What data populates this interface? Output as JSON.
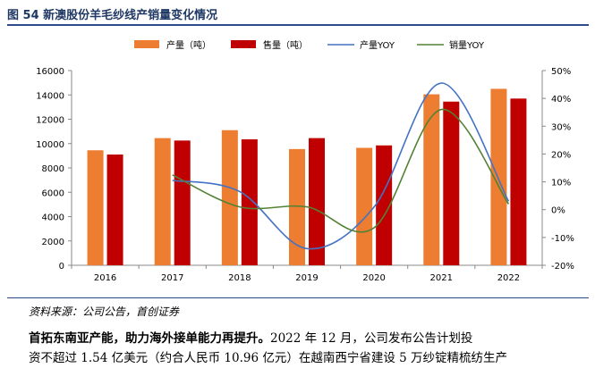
{
  "figure": {
    "title": "图 54 新澳股份羊毛纱线产销量变化情况",
    "source": "资料来源：公司公告，首创证券"
  },
  "body": {
    "lead": "首拓东南亚产能，助力海外接单能力再提升。",
    "text_line1": "2022 年 12 月，公司发布公告计划投",
    "text_line2": "资不超过 1.54 亿美元（约合人民币 10.96 亿元）在越南西宁省建设 5 万纱锭精梳纺生产"
  },
  "colors": {
    "production": "#ED7D31",
    "sales": "#C00000",
    "production_yoy": "#4472C4",
    "sales_yoy": "#548235",
    "title": "#1F3864"
  },
  "chart_data": {
    "type": "bar",
    "categories": [
      "2016",
      "2017",
      "2018",
      "2019",
      "2020",
      "2021",
      "2022"
    ],
    "series": [
      {
        "name": "产量（吨）",
        "type": "bar",
        "axis": "left",
        "values": [
          9450,
          10450,
          11100,
          9550,
          9650,
          14050,
          14500
        ]
      },
      {
        "name": "售量（吨）",
        "type": "bar",
        "axis": "left",
        "values": [
          9100,
          10250,
          10350,
          10450,
          9850,
          13450,
          13700
        ]
      },
      {
        "name": "产量YOY",
        "type": "line",
        "axis": "right",
        "values": [
          null,
          10.5,
          6.5,
          -14.0,
          1.0,
          45.5,
          3.0
        ]
      },
      {
        "name": "销量YOY",
        "type": "line",
        "axis": "right",
        "values": [
          null,
          12.5,
          1.0,
          1.0,
          -6.5,
          36.0,
          2.0
        ]
      }
    ],
    "y_left": {
      "min": 0,
      "max": 16000,
      "step": 2000,
      "ticks": [
        "0",
        "2000",
        "4000",
        "6000",
        "8000",
        "10000",
        "12000",
        "14000",
        "16000"
      ]
    },
    "y_right": {
      "min": -20,
      "max": 50,
      "step": 10,
      "ticks": [
        "-20%",
        "-10%",
        "0%",
        "10%",
        "20%",
        "30%",
        "40%",
        "50%"
      ]
    },
    "legend_position": "top",
    "grid": false
  }
}
